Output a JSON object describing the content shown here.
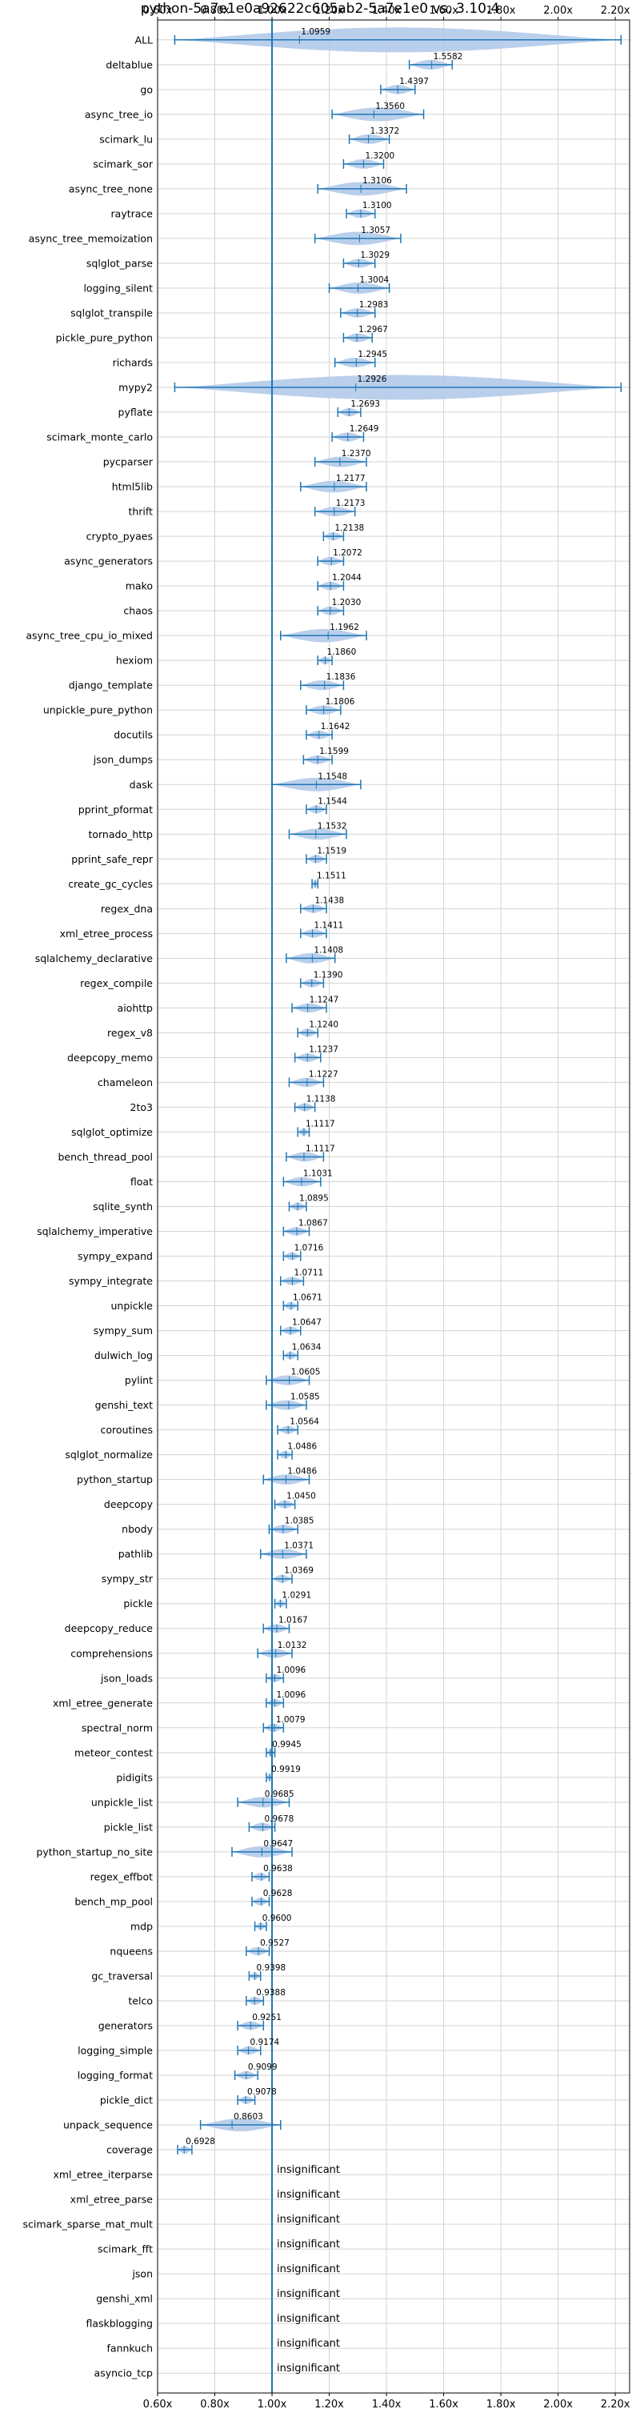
{
  "chart_data": {
    "type": "violin",
    "title": "python-5a7e1e0a92622c605ab2-5a7e1e0 vs. 3.10.4",
    "xlim": [
      0.6,
      2.25
    ],
    "xticks": [
      0.6,
      0.8,
      1.0,
      1.2,
      1.4,
      1.6,
      1.8,
      2.0,
      2.2
    ],
    "xtick_labels": [
      "0.60x",
      "0.80x",
      "1.00x",
      "1.20x",
      "1.40x",
      "1.60x",
      "1.80x",
      "2.00x",
      "2.20x"
    ],
    "reference_line": 1.0,
    "grid": true,
    "colors": {
      "violin": "#aec7e8",
      "line": "#1f77b4",
      "grid": "#d3d3d3",
      "frame": "#000000"
    },
    "insignificant_label": "insignificant",
    "benchmarks": [
      {
        "name": "ALL",
        "label": "1.0959",
        "value": 1.0959,
        "min": 0.66,
        "max": 2.22
      },
      {
        "name": "deltablue",
        "label": "1.5582",
        "value": 1.5582,
        "min": 1.48,
        "max": 1.63
      },
      {
        "name": "go",
        "label": "1.4397",
        "value": 1.4397,
        "min": 1.38,
        "max": 1.5
      },
      {
        "name": "async_tree_io",
        "label": "1.3560",
        "value": 1.356,
        "min": 1.21,
        "max": 1.53
      },
      {
        "name": "scimark_lu",
        "label": "1.3372",
        "value": 1.3372,
        "min": 1.27,
        "max": 1.41
      },
      {
        "name": "scimark_sor",
        "label": "1.3200",
        "value": 1.32,
        "min": 1.25,
        "max": 1.39
      },
      {
        "name": "async_tree_none",
        "label": "1.3106",
        "value": 1.3106,
        "min": 1.16,
        "max": 1.47
      },
      {
        "name": "raytrace",
        "label": "1.3100",
        "value": 1.31,
        "min": 1.26,
        "max": 1.36
      },
      {
        "name": "async_tree_memoization",
        "label": "1.3057",
        "value": 1.3057,
        "min": 1.15,
        "max": 1.45
      },
      {
        "name": "sqlglot_parse",
        "label": "1.3029",
        "value": 1.3029,
        "min": 1.25,
        "max": 1.36
      },
      {
        "name": "logging_silent",
        "label": "1.3004",
        "value": 1.3004,
        "min": 1.2,
        "max": 1.41
      },
      {
        "name": "sqlglot_transpile",
        "label": "1.2983",
        "value": 1.2983,
        "min": 1.24,
        "max": 1.36
      },
      {
        "name": "pickle_pure_python",
        "label": "1.2967",
        "value": 1.2967,
        "min": 1.25,
        "max": 1.35
      },
      {
        "name": "richards",
        "label": "1.2945",
        "value": 1.2945,
        "min": 1.22,
        "max": 1.36
      },
      {
        "name": "mypy2",
        "label": "1.2926",
        "value": 1.2926,
        "min": 0.66,
        "max": 2.22
      },
      {
        "name": "pyflate",
        "label": "1.2693",
        "value": 1.2693,
        "min": 1.23,
        "max": 1.31
      },
      {
        "name": "scimark_monte_carlo",
        "label": "1.2649",
        "value": 1.2649,
        "min": 1.21,
        "max": 1.32
      },
      {
        "name": "pycparser",
        "label": "1.2370",
        "value": 1.237,
        "min": 1.15,
        "max": 1.33
      },
      {
        "name": "html5lib",
        "label": "1.2177",
        "value": 1.2177,
        "min": 1.1,
        "max": 1.33
      },
      {
        "name": "thrift",
        "label": "1.2173",
        "value": 1.2173,
        "min": 1.15,
        "max": 1.29
      },
      {
        "name": "crypto_pyaes",
        "label": "1.2138",
        "value": 1.2138,
        "min": 1.18,
        "max": 1.25
      },
      {
        "name": "async_generators",
        "label": "1.2072",
        "value": 1.2072,
        "min": 1.16,
        "max": 1.25
      },
      {
        "name": "mako",
        "label": "1.2044",
        "value": 1.2044,
        "min": 1.16,
        "max": 1.25
      },
      {
        "name": "chaos",
        "label": "1.2030",
        "value": 1.203,
        "min": 1.16,
        "max": 1.25
      },
      {
        "name": "async_tree_cpu_io_mixed",
        "label": "1.1962",
        "value": 1.1962,
        "min": 1.03,
        "max": 1.33
      },
      {
        "name": "hexiom",
        "label": "1.1860",
        "value": 1.186,
        "min": 1.16,
        "max": 1.21
      },
      {
        "name": "django_template",
        "label": "1.1836",
        "value": 1.1836,
        "min": 1.1,
        "max": 1.25
      },
      {
        "name": "unpickle_pure_python",
        "label": "1.1806",
        "value": 1.1806,
        "min": 1.12,
        "max": 1.24
      },
      {
        "name": "docutils",
        "label": "1.1642",
        "value": 1.1642,
        "min": 1.12,
        "max": 1.21
      },
      {
        "name": "json_dumps",
        "label": "1.1599",
        "value": 1.1599,
        "min": 1.11,
        "max": 1.21
      },
      {
        "name": "dask",
        "label": "1.1548",
        "value": 1.1548,
        "min": 1.0,
        "max": 1.31
      },
      {
        "name": "pprint_pformat",
        "label": "1.1544",
        "value": 1.1544,
        "min": 1.12,
        "max": 1.19
      },
      {
        "name": "tornado_http",
        "label": "1.1532",
        "value": 1.1532,
        "min": 1.06,
        "max": 1.26
      },
      {
        "name": "pprint_safe_repr",
        "label": "1.1519",
        "value": 1.1519,
        "min": 1.12,
        "max": 1.19
      },
      {
        "name": "create_gc_cycles",
        "label": "1.1511",
        "value": 1.1511,
        "min": 1.14,
        "max": 1.16
      },
      {
        "name": "regex_dna",
        "label": "1.1438",
        "value": 1.1438,
        "min": 1.1,
        "max": 1.19
      },
      {
        "name": "xml_etree_process",
        "label": "1.1411",
        "value": 1.1411,
        "min": 1.1,
        "max": 1.19
      },
      {
        "name": "sqlalchemy_declarative",
        "label": "1.1408",
        "value": 1.1408,
        "min": 1.05,
        "max": 1.22
      },
      {
        "name": "regex_compile",
        "label": "1.1390",
        "value": 1.139,
        "min": 1.1,
        "max": 1.18
      },
      {
        "name": "aiohttp",
        "label": "1.1247",
        "value": 1.1247,
        "min": 1.07,
        "max": 1.19
      },
      {
        "name": "regex_v8",
        "label": "1.1240",
        "value": 1.124,
        "min": 1.09,
        "max": 1.16
      },
      {
        "name": "deepcopy_memo",
        "label": "1.1237",
        "value": 1.1237,
        "min": 1.08,
        "max": 1.17
      },
      {
        "name": "chameleon",
        "label": "1.1227",
        "value": 1.1227,
        "min": 1.06,
        "max": 1.18
      },
      {
        "name": "2to3",
        "label": "1.1138",
        "value": 1.1138,
        "min": 1.08,
        "max": 1.15
      },
      {
        "name": "sqlglot_optimize",
        "label": "1.1117",
        "value": 1.1117,
        "min": 1.09,
        "max": 1.13
      },
      {
        "name": "bench_thread_pool",
        "label": "1.1117",
        "value": 1.1117,
        "min": 1.05,
        "max": 1.18
      },
      {
        "name": "float",
        "label": "1.1031",
        "value": 1.1031,
        "min": 1.04,
        "max": 1.17
      },
      {
        "name": "sqlite_synth",
        "label": "1.0895",
        "value": 1.0895,
        "min": 1.06,
        "max": 1.12
      },
      {
        "name": "sqlalchemy_imperative",
        "label": "1.0867",
        "value": 1.0867,
        "min": 1.04,
        "max": 1.13
      },
      {
        "name": "sympy_expand",
        "label": "1.0716",
        "value": 1.0716,
        "min": 1.04,
        "max": 1.1
      },
      {
        "name": "sympy_integrate",
        "label": "1.0711",
        "value": 1.0711,
        "min": 1.03,
        "max": 1.11
      },
      {
        "name": "unpickle",
        "label": "1.0671",
        "value": 1.0671,
        "min": 1.04,
        "max": 1.09
      },
      {
        "name": "sympy_sum",
        "label": "1.0647",
        "value": 1.0647,
        "min": 1.03,
        "max": 1.1
      },
      {
        "name": "dulwich_log",
        "label": "1.0634",
        "value": 1.0634,
        "min": 1.04,
        "max": 1.09
      },
      {
        "name": "pylint",
        "label": "1.0605",
        "value": 1.0605,
        "min": 0.98,
        "max": 1.13
      },
      {
        "name": "genshi_text",
        "label": "1.0585",
        "value": 1.0585,
        "min": 0.98,
        "max": 1.12
      },
      {
        "name": "coroutines",
        "label": "1.0564",
        "value": 1.0564,
        "min": 1.02,
        "max": 1.09
      },
      {
        "name": "sqlglot_normalize",
        "label": "1.0486",
        "value": 1.0486,
        "min": 1.02,
        "max": 1.07
      },
      {
        "name": "python_startup",
        "label": "1.0486",
        "value": 1.0486,
        "min": 0.97,
        "max": 1.13
      },
      {
        "name": "deepcopy",
        "label": "1.0450",
        "value": 1.045,
        "min": 1.01,
        "max": 1.08
      },
      {
        "name": "nbody",
        "label": "1.0385",
        "value": 1.0385,
        "min": 0.99,
        "max": 1.09
      },
      {
        "name": "pathlib",
        "label": "1.0371",
        "value": 1.0371,
        "min": 0.96,
        "max": 1.12
      },
      {
        "name": "sympy_str",
        "label": "1.0369",
        "value": 1.0369,
        "min": 1.0,
        "max": 1.07
      },
      {
        "name": "pickle",
        "label": "1.0291",
        "value": 1.0291,
        "min": 1.01,
        "max": 1.05
      },
      {
        "name": "deepcopy_reduce",
        "label": "1.0167",
        "value": 1.0167,
        "min": 0.97,
        "max": 1.06
      },
      {
        "name": "comprehensions",
        "label": "1.0132",
        "value": 1.0132,
        "min": 0.95,
        "max": 1.07
      },
      {
        "name": "json_loads",
        "label": "1.0096",
        "value": 1.0096,
        "min": 0.98,
        "max": 1.04
      },
      {
        "name": "xml_etree_generate",
        "label": "1.0096",
        "value": 1.0096,
        "min": 0.98,
        "max": 1.04
      },
      {
        "name": "spectral_norm",
        "label": "1.0079",
        "value": 1.0079,
        "min": 0.97,
        "max": 1.04
      },
      {
        "name": "meteor_contest",
        "label": "0.9945",
        "value": 0.9945,
        "min": 0.98,
        "max": 1.01
      },
      {
        "name": "pidigits",
        "label": "0.9919",
        "value": 0.9919,
        "min": 0.98,
        "max": 1.0
      },
      {
        "name": "unpickle_list",
        "label": "0.9685",
        "value": 0.9685,
        "min": 0.88,
        "max": 1.06
      },
      {
        "name": "pickle_list",
        "label": "0.9678",
        "value": 0.9678,
        "min": 0.92,
        "max": 1.01
      },
      {
        "name": "python_startup_no_site",
        "label": "0.9647",
        "value": 0.9647,
        "min": 0.86,
        "max": 1.07
      },
      {
        "name": "regex_effbot",
        "label": "0.9638",
        "value": 0.9638,
        "min": 0.93,
        "max": 0.99
      },
      {
        "name": "bench_mp_pool",
        "label": "0.9628",
        "value": 0.9628,
        "min": 0.93,
        "max": 0.99
      },
      {
        "name": "mdp",
        "label": "0.9600",
        "value": 0.96,
        "min": 0.94,
        "max": 0.98
      },
      {
        "name": "nqueens",
        "label": "0.9527",
        "value": 0.9527,
        "min": 0.91,
        "max": 0.99
      },
      {
        "name": "gc_traversal",
        "label": "0.9398",
        "value": 0.9398,
        "min": 0.92,
        "max": 0.96
      },
      {
        "name": "telco",
        "label": "0.9388",
        "value": 0.9388,
        "min": 0.91,
        "max": 0.97
      },
      {
        "name": "generators",
        "label": "0.9251",
        "value": 0.9251,
        "min": 0.88,
        "max": 0.97
      },
      {
        "name": "logging_simple",
        "label": "0.9174",
        "value": 0.9174,
        "min": 0.88,
        "max": 0.96
      },
      {
        "name": "logging_format",
        "label": "0.9099",
        "value": 0.9099,
        "min": 0.87,
        "max": 0.95
      },
      {
        "name": "pickle_dict",
        "label": "0.9078",
        "value": 0.9078,
        "min": 0.88,
        "max": 0.94
      },
      {
        "name": "unpack_sequence",
        "label": "0.8603",
        "value": 0.8603,
        "min": 0.75,
        "max": 1.03
      },
      {
        "name": "coverage",
        "label": "0.6928",
        "value": 0.6928,
        "min": 0.67,
        "max": 0.72
      },
      {
        "name": "xml_etree_iterparse",
        "label": "insignificant"
      },
      {
        "name": "xml_etree_parse",
        "label": "insignificant"
      },
      {
        "name": "scimark_sparse_mat_mult",
        "label": "insignificant"
      },
      {
        "name": "scimark_fft",
        "label": "insignificant"
      },
      {
        "name": "json",
        "label": "insignificant"
      },
      {
        "name": "genshi_xml",
        "label": "insignificant"
      },
      {
        "name": "flaskblogging",
        "label": "insignificant"
      },
      {
        "name": "fannkuch",
        "label": "insignificant"
      },
      {
        "name": "asyncio_tcp",
        "label": "insignificant"
      }
    ]
  }
}
